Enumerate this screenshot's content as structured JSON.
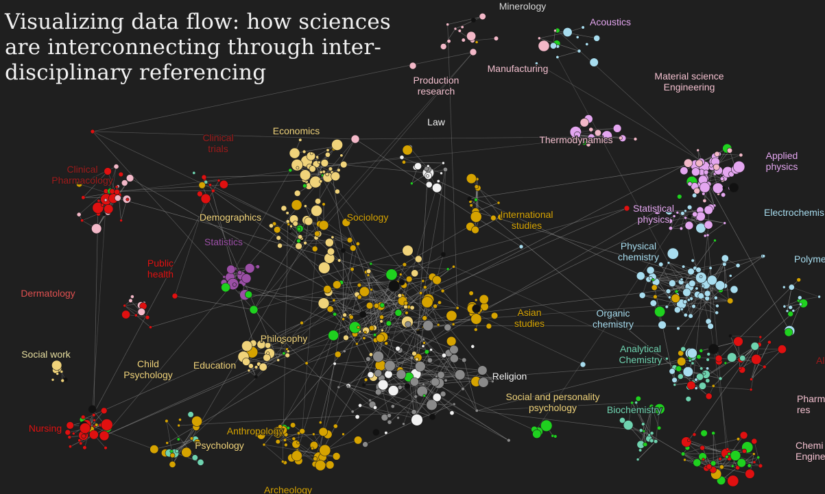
{
  "title_lines": [
    "Visualizing data flow: how sciences",
    "are interconnecting through inter-",
    "disciplinary referencing"
  ],
  "colors": {
    "background": "#1f1f1f",
    "edge": "#9a9a9a",
    "medicine": "#e01010",
    "clinical_label": "#9e1a1a",
    "social": "#f0d37a",
    "gold": "#d6a300",
    "statistics": "#9b4fa6",
    "pink": "#f3b8c8",
    "violet": "#e4a6f0",
    "cyan": "#a8ddef",
    "teal": "#6fd3b0",
    "white": "#f2f2f2",
    "gray": "#8a8a8a",
    "green": "#1fd11f"
  },
  "labels": [
    {
      "id": "minerology",
      "text": "Minerology",
      "color": "#d9d9d9"
    },
    {
      "id": "acoustics",
      "text": "Acoustics",
      "color": "#e4a6f0"
    },
    {
      "id": "manufacturing",
      "text": "Manufacturing",
      "color": "#f3c0cf"
    },
    {
      "id": "production",
      "lines": [
        "Production",
        "research"
      ],
      "color": "#f3c0cf"
    },
    {
      "id": "material",
      "lines": [
        "Material science",
        "Engineering"
      ],
      "color": "#f3c0cf"
    },
    {
      "id": "law",
      "text": "Law",
      "color": "#f2f2f2"
    },
    {
      "id": "economics",
      "text": "Economics",
      "color": "#f0d37a"
    },
    {
      "id": "clinical-trials",
      "lines": [
        "Clinical",
        "trials"
      ],
      "color": "#9e1a1a"
    },
    {
      "id": "clinical-pharmacology",
      "lines": [
        "Clinical",
        "Pharmacology"
      ],
      "color": "#9e1a1a"
    },
    {
      "id": "thermodynamics",
      "text": "Thermodynamics",
      "color": "#f3c0cf"
    },
    {
      "id": "applied-physics",
      "lines": [
        "Applied",
        "physics"
      ],
      "color": "#e4a6f0"
    },
    {
      "id": "demographics",
      "text": "Demographics",
      "color": "#f0d37a"
    },
    {
      "id": "statistics",
      "text": "Statistics",
      "color": "#9b4fa6"
    },
    {
      "id": "sociology",
      "text": "Sociology",
      "color": "#d6a300"
    },
    {
      "id": "international",
      "lines": [
        "International",
        "studies"
      ],
      "color": "#d6a300"
    },
    {
      "id": "statistical-physics",
      "lines": [
        "Statistical",
        "physics"
      ],
      "color": "#e4a6f0"
    },
    {
      "id": "electrochemistry",
      "text": "Electrochemis",
      "color": "#a8ddef"
    },
    {
      "id": "public-health",
      "lines": [
        "Public",
        "health"
      ],
      "color": "#e01010"
    },
    {
      "id": "physical-chemistry",
      "lines": [
        "Physical",
        "chemistry"
      ],
      "color": "#a8ddef"
    },
    {
      "id": "polymer",
      "text": "Polyme",
      "color": "#a8ddef"
    },
    {
      "id": "dermatology",
      "text": "Dermatology",
      "color": "#e05050"
    },
    {
      "id": "asian",
      "lines": [
        "Asian",
        "studies"
      ],
      "color": "#d6a300"
    },
    {
      "id": "organic",
      "lines": [
        "Organic",
        "chemistry"
      ],
      "color": "#a8ddef"
    },
    {
      "id": "philosophy",
      "text": "Philosophy",
      "color": "#f0d37a"
    },
    {
      "id": "analytical",
      "lines": [
        "Analytical",
        "Chemistry"
      ],
      "color": "#6fd3b0"
    },
    {
      "id": "social-work",
      "text": "Social work",
      "color": "#e8dfa0"
    },
    {
      "id": "child-psychology",
      "lines": [
        "Child",
        "Psychology"
      ],
      "color": "#f0d37a"
    },
    {
      "id": "education",
      "text": "Education",
      "color": "#f0d37a"
    },
    {
      "id": "religion",
      "text": "Religion",
      "color": "#f2f2f2"
    },
    {
      "id": "social-personality",
      "lines": [
        "Social and personality",
        "psychology"
      ],
      "color": "#f0d37a"
    },
    {
      "id": "biochemistry",
      "text": "Biochemistry",
      "color": "#6fd3b0"
    },
    {
      "id": "pharmacology-right",
      "lines": [
        "Pharm",
        "res"
      ],
      "color": "#f3c0cf"
    },
    {
      "id": "nursing",
      "text": "Nursing",
      "color": "#e01010"
    },
    {
      "id": "anthropology",
      "text": "Anthropology",
      "color": "#d6a300"
    },
    {
      "id": "psychology",
      "text": "Psychology",
      "color": "#f0d37a"
    },
    {
      "id": "chemical-engineering",
      "lines": [
        "Chemi",
        "Enginee"
      ],
      "color": "#f3c0cf"
    },
    {
      "id": "archeology",
      "text": "Archeology",
      "color": "#d6a300"
    },
    {
      "id": "right-edge-label",
      "text": "Al",
      "color": "#9e1a1a"
    }
  ]
}
